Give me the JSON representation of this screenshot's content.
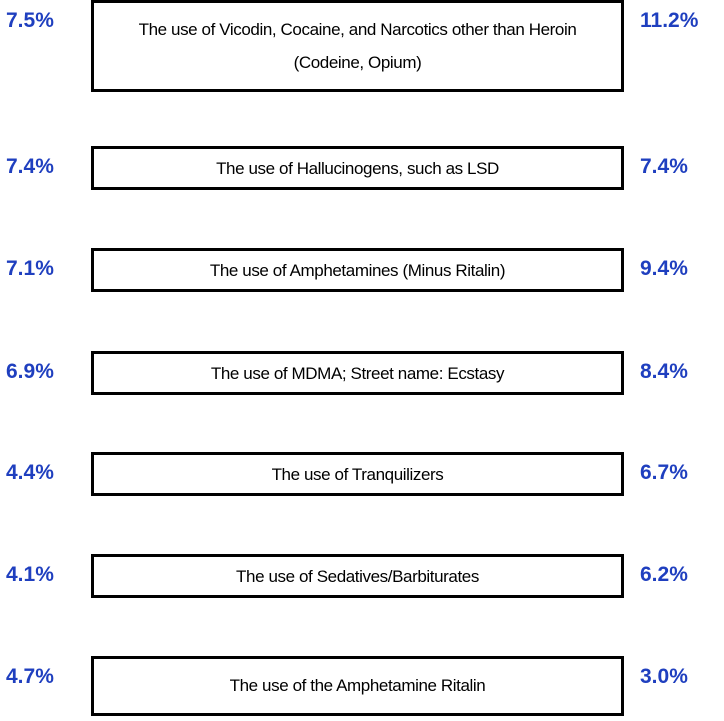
{
  "rows": [
    {
      "left": "7.5%",
      "label": "The use of Vicodin, Cocaine, and Narcotics other than Heroin (Codeine, Opium)",
      "right": "11.2%"
    },
    {
      "left": "7.4%",
      "label": "The use of Hallucinogens, such as LSD",
      "right": "7.4%"
    },
    {
      "left": "7.1%",
      "label": "The use of Amphetamines (Minus Ritalin)",
      "right": "9.4%"
    },
    {
      "left": "6.9%",
      "label": "The use of MDMA; Street name: Ecstasy",
      "right": "8.4%"
    },
    {
      "left": "4.4%",
      "label": "The use of Tranquilizers",
      "right": "6.7%"
    },
    {
      "left": "4.1%",
      "label": "The use of Sedatives/Barbiturates",
      "right": "6.2%"
    },
    {
      "left": "4.7%",
      "label": "The use of the Amphetamine Ritalin",
      "right": "3.0%"
    }
  ]
}
